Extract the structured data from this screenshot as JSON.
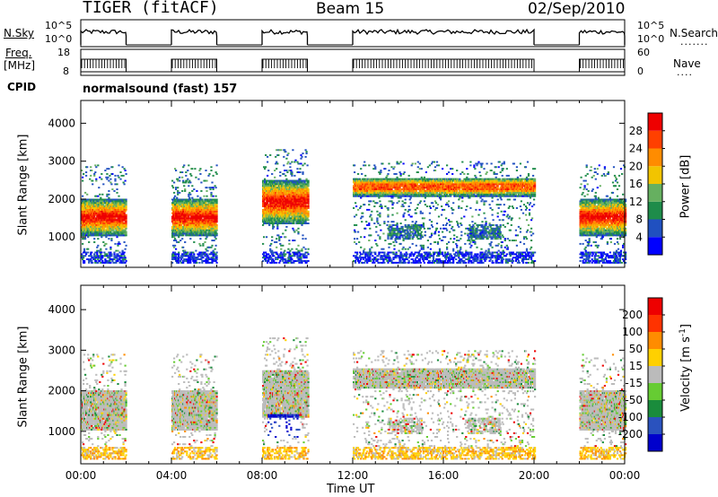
{
  "header": {
    "radar": "TIGER (fitACF)",
    "beam": "Beam 15",
    "date": "02/Sep/2010"
  },
  "strips": {
    "nsky": {
      "label": "N.Sky",
      "y_top": "10^5",
      "y_bottom": "10^0",
      "right_label": "N.Search",
      "right_top": "10^5",
      "right_bottom": "10^0"
    },
    "freq": {
      "label_top": "Freq.",
      "label_bottom": "[MHz]",
      "y_top": "18",
      "y_bottom": "8",
      "right_label": "Nave",
      "right_top": "60",
      "right_bottom": "0"
    },
    "cpid": {
      "label": "CPID",
      "value": "normalsound (fast) 157"
    }
  },
  "chart_data": [
    {
      "type": "heatmap",
      "title": "",
      "xlabel": "Time UT",
      "ylabel": "Slant Range [km]",
      "x_ticks": [
        "00:00",
        "04:00",
        "08:00",
        "12:00",
        "16:00",
        "20:00",
        "00:00"
      ],
      "x_range_hours": [
        0,
        24
      ],
      "y_ticks": [
        1000,
        2000,
        3000,
        4000
      ],
      "ylim": [
        200,
        4600
      ],
      "colorbar": {
        "label": "Power [dB]",
        "ticks": [
          4,
          8,
          12,
          16,
          20,
          24,
          28
        ],
        "colors": [
          "#0000ff",
          "#2050c0",
          "#1e8c4a",
          "#66b060",
          "#f2c400",
          "#ff8c00",
          "#ff4000",
          "#ee0000"
        ]
      },
      "data_segments_hours": [
        [
          0.0,
          2.0
        ],
        [
          4.0,
          6.0
        ],
        [
          8.0,
          10.0
        ],
        [
          12.0,
          20.0
        ],
        [
          22.0,
          24.0
        ]
      ]
    },
    {
      "type": "heatmap",
      "title": "",
      "xlabel": "Time UT",
      "ylabel": "Slant Range [km]",
      "x_ticks": [
        "00:00",
        "04:00",
        "08:00",
        "12:00",
        "16:00",
        "20:00",
        "00:00"
      ],
      "x_range_hours": [
        0,
        24
      ],
      "y_ticks": [
        1000,
        2000,
        3000,
        4000
      ],
      "ylim": [
        200,
        4600
      ],
      "colorbar": {
        "label": "Velocity [m s^-1]",
        "ticks": [
          200,
          100,
          50,
          15,
          -15,
          -50,
          -100,
          -200
        ],
        "colors": [
          "#0000cc",
          "#2a52be",
          "#1a8c3c",
          "#66cc33",
          "#bbbbbb",
          "#ffd000",
          "#ff8c00",
          "#ff3300",
          "#ee0000"
        ]
      },
      "data_segments_hours": [
        [
          0.0,
          2.0
        ],
        [
          4.0,
          6.0
        ],
        [
          8.0,
          10.0
        ],
        [
          12.0,
          20.0
        ],
        [
          22.0,
          24.0
        ]
      ]
    }
  ]
}
